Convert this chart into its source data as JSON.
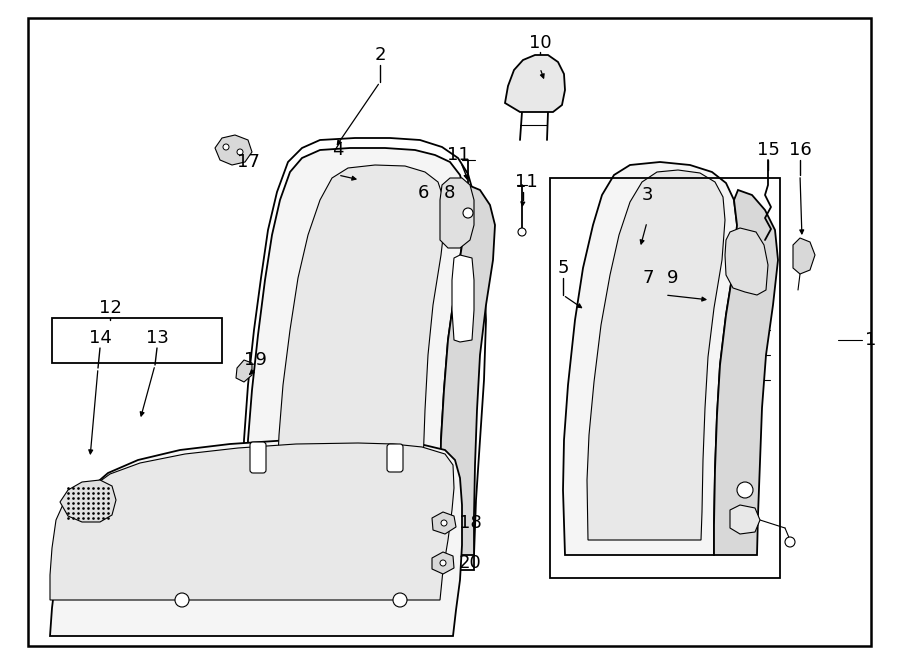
{
  "bg": "#ffffff",
  "lc": "#000000",
  "fill_light": "#f5f5f5",
  "fill_mid": "#e8e8e8",
  "fill_dark": "#d8d8d8",
  "fig_w": 9.0,
  "fig_h": 6.61,
  "dpi": 100
}
